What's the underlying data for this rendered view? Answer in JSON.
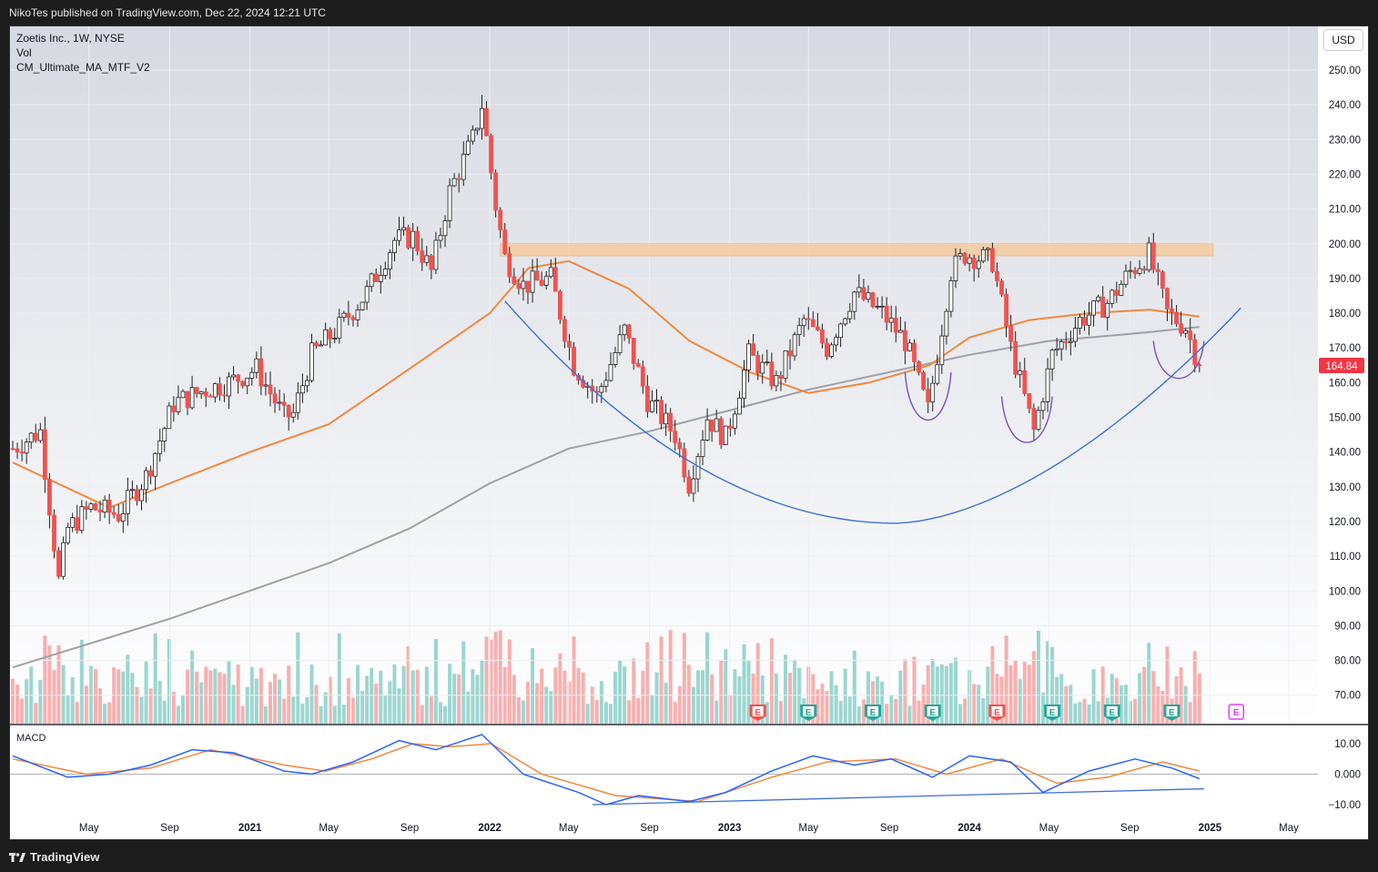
{
  "header": {
    "publish_line": "NikoTes published on TradingView.com, Dec 22, 2024 12:21 UTC"
  },
  "legend": {
    "symbol_line": "Zoetis Inc., 1W, NYSE",
    "volume_label": "Vol",
    "indicator_label": "CM_Ultimate_MA_MTF_V2"
  },
  "currency_button": "USD",
  "last_price_label": "164.84",
  "macd_label": "MACD",
  "footer": {
    "brand": "TradingView"
  },
  "colors": {
    "up": "#26a69a",
    "down": "#ef5350",
    "ma_short": "#f0883e",
    "ma_long": "#a0a0a8",
    "trendline": "#3d6fd8",
    "cup_handle": "#7b4fbf",
    "resistance_zone": "#f6c89a",
    "earnings_future": "#e040fb"
  },
  "chart_data": {
    "type": "candlestick",
    "price_axis": {
      "ticks": [
        250,
        240,
        230,
        220,
        210,
        200,
        190,
        180,
        170,
        160,
        150,
        140,
        130,
        120,
        110,
        100,
        90,
        80,
        70
      ],
      "tick_labels": [
        "250.00",
        "240.00",
        "230.00",
        "220.00",
        "210.00",
        "200.00",
        "190.00",
        "180.00",
        "170.00",
        "160.00",
        "150.00",
        "140.00",
        "130.00",
        "120.00",
        "110.00",
        "100.00",
        "90.00",
        "80.00",
        "70.00"
      ]
    },
    "macd_axis": {
      "ticks": [
        10,
        0,
        -10
      ],
      "tick_labels": [
        "10.00",
        "0.000",
        "−10.00"
      ]
    },
    "time_axis": [
      {
        "label": "May",
        "date": "2020-05-01"
      },
      {
        "label": "Sep",
        "date": "2020-09-01"
      },
      {
        "label": "2021",
        "date": "2021-01-01"
      },
      {
        "label": "May",
        "date": "2021-05-01"
      },
      {
        "label": "Sep",
        "date": "2021-09-01"
      },
      {
        "label": "2022",
        "date": "2022-01-01"
      },
      {
        "label": "May",
        "date": "2022-05-01"
      },
      {
        "label": "Sep",
        "date": "2022-09-01"
      },
      {
        "label": "2023",
        "date": "2023-01-01"
      },
      {
        "label": "May",
        "date": "2023-05-01"
      },
      {
        "label": "Sep",
        "date": "2023-09-01"
      },
      {
        "label": "2024",
        "date": "2024-01-01"
      },
      {
        "label": "May",
        "date": "2024-05-01"
      },
      {
        "label": "Sep",
        "date": "2024-09-01"
      },
      {
        "label": "2025",
        "date": "2025-01-01"
      },
      {
        "label": "May",
        "date": "2025-05-01"
      }
    ],
    "price_path": [
      {
        "date": "2020-01-06",
        "close": 141
      },
      {
        "date": "2020-02-17",
        "close": 146
      },
      {
        "date": "2020-03-16",
        "close": 103
      },
      {
        "date": "2020-03-30",
        "close": 118
      },
      {
        "date": "2020-05-04",
        "close": 124
      },
      {
        "date": "2020-06-15",
        "close": 122
      },
      {
        "date": "2020-07-27",
        "close": 133
      },
      {
        "date": "2020-09-07",
        "close": 154
      },
      {
        "date": "2020-10-26",
        "close": 158
      },
      {
        "date": "2020-11-30",
        "close": 160
      },
      {
        "date": "2021-01-11",
        "close": 164
      },
      {
        "date": "2021-02-22",
        "close": 150
      },
      {
        "date": "2021-03-08",
        "close": 151
      },
      {
        "date": "2021-04-05",
        "close": 168
      },
      {
        "date": "2021-05-17",
        "close": 176
      },
      {
        "date": "2021-06-28",
        "close": 186
      },
      {
        "date": "2021-08-09",
        "close": 201
      },
      {
        "date": "2021-09-06",
        "close": 202
      },
      {
        "date": "2021-10-04",
        "close": 192
      },
      {
        "date": "2021-11-01",
        "close": 215
      },
      {
        "date": "2021-12-06",
        "close": 230
      },
      {
        "date": "2021-12-20",
        "close": 240
      },
      {
        "date": "2022-01-10",
        "close": 211
      },
      {
        "date": "2022-01-24",
        "close": 196
      },
      {
        "date": "2022-02-21",
        "close": 188
      },
      {
        "date": "2022-04-04",
        "close": 190
      },
      {
        "date": "2022-05-09",
        "close": 165
      },
      {
        "date": "2022-06-13",
        "close": 156
      },
      {
        "date": "2022-07-25",
        "close": 175
      },
      {
        "date": "2022-08-29",
        "close": 155
      },
      {
        "date": "2022-10-10",
        "close": 145
      },
      {
        "date": "2022-10-31",
        "close": 131
      },
      {
        "date": "2022-11-28",
        "close": 150
      },
      {
        "date": "2022-12-26",
        "close": 144
      },
      {
        "date": "2023-01-30",
        "close": 168
      },
      {
        "date": "2023-03-13",
        "close": 160
      },
      {
        "date": "2023-04-24",
        "close": 178
      },
      {
        "date": "2023-05-29",
        "close": 170
      },
      {
        "date": "2023-07-10",
        "close": 186
      },
      {
        "date": "2023-08-21",
        "close": 180
      },
      {
        "date": "2023-09-25",
        "close": 172
      },
      {
        "date": "2023-10-30",
        "close": 152
      },
      {
        "date": "2023-12-04",
        "close": 192
      },
      {
        "date": "2023-12-25",
        "close": 197
      },
      {
        "date": "2024-02-05",
        "close": 195
      },
      {
        "date": "2024-03-04",
        "close": 170
      },
      {
        "date": "2024-04-08",
        "close": 146
      },
      {
        "date": "2024-05-06",
        "close": 168
      },
      {
        "date": "2024-06-17",
        "close": 178
      },
      {
        "date": "2024-07-29",
        "close": 183
      },
      {
        "date": "2024-09-02",
        "close": 192
      },
      {
        "date": "2024-09-30",
        "close": 197
      },
      {
        "date": "2024-10-28",
        "close": 180
      },
      {
        "date": "2024-11-25",
        "close": 176
      },
      {
        "date": "2024-12-16",
        "close": 164.84
      }
    ],
    "moving_average_short": [
      {
        "date": "2020-01-06",
        "value": 137
      },
      {
        "date": "2020-06-01",
        "value": 124
      },
      {
        "date": "2020-09-01",
        "value": 131
      },
      {
        "date": "2021-01-01",
        "value": 140
      },
      {
        "date": "2021-05-01",
        "value": 148
      },
      {
        "date": "2021-09-01",
        "value": 164
      },
      {
        "date": "2022-01-01",
        "value": 180
      },
      {
        "date": "2022-03-01",
        "value": 193
      },
      {
        "date": "2022-05-01",
        "value": 195
      },
      {
        "date": "2022-08-01",
        "value": 187
      },
      {
        "date": "2022-11-01",
        "value": 172
      },
      {
        "date": "2023-02-01",
        "value": 163
      },
      {
        "date": "2023-05-01",
        "value": 157
      },
      {
        "date": "2023-08-01",
        "value": 160
      },
      {
        "date": "2023-11-01",
        "value": 165
      },
      {
        "date": "2024-01-01",
        "value": 173
      },
      {
        "date": "2024-04-01",
        "value": 178
      },
      {
        "date": "2024-07-01",
        "value": 180
      },
      {
        "date": "2024-10-01",
        "value": 181
      },
      {
        "date": "2024-12-16",
        "value": 179
      }
    ],
    "moving_average_long": [
      {
        "date": "2020-01-06",
        "value": 78
      },
      {
        "date": "2020-09-01",
        "value": 92
      },
      {
        "date": "2021-05-01",
        "value": 108
      },
      {
        "date": "2021-09-01",
        "value": 118
      },
      {
        "date": "2022-01-01",
        "value": 131
      },
      {
        "date": "2022-05-01",
        "value": 141
      },
      {
        "date": "2022-09-01",
        "value": 146
      },
      {
        "date": "2023-01-01",
        "value": 152
      },
      {
        "date": "2023-05-01",
        "value": 158
      },
      {
        "date": "2023-09-01",
        "value": 163
      },
      {
        "date": "2024-01-01",
        "value": 168
      },
      {
        "date": "2024-05-01",
        "value": 172
      },
      {
        "date": "2024-09-01",
        "value": 174
      },
      {
        "date": "2024-12-16",
        "value": 176
      }
    ],
    "resistance_zone": {
      "low": 196.5,
      "high": 200,
      "from": "2022-01-17",
      "to": "2025-01-06"
    },
    "cup_curve": {
      "start": {
        "date": "2022-01-24",
        "value": 183.5
      },
      "bottom": {
        "date": "2023-09-11",
        "value": 119.5
      },
      "end": {
        "date": "2025-02-17",
        "value": 181.5
      }
    },
    "handles": [
      {
        "from": "2023-09-25",
        "to": "2023-12-04",
        "low": 147.8,
        "top": 163
      },
      {
        "from": "2024-02-19",
        "to": "2024-05-06",
        "low": 141.5,
        "top": 156
      },
      {
        "from": "2024-10-07",
        "to": "2024-12-23",
        "low": 160.8,
        "top": 172
      }
    ],
    "earnings": [
      {
        "date": "2023-02-13",
        "label": "E",
        "kind": "down"
      },
      {
        "date": "2023-05-01",
        "label": "E",
        "kind": "up"
      },
      {
        "date": "2023-08-07",
        "label": "E",
        "kind": "up"
      },
      {
        "date": "2023-11-06",
        "label": "E",
        "kind": "up"
      },
      {
        "date": "2024-02-12",
        "label": "E",
        "kind": "down"
      },
      {
        "date": "2024-05-06",
        "label": "E",
        "kind": "up"
      },
      {
        "date": "2024-08-05",
        "label": "E",
        "kind": "up"
      },
      {
        "date": "2024-11-04",
        "label": "E",
        "kind": "up"
      },
      {
        "date": "2025-02-10",
        "label": "E",
        "kind": "future"
      }
    ],
    "macd": {
      "macd_line": [
        {
          "date": "2020-01-06",
          "value": 6
        },
        {
          "date": "2020-03-30",
          "value": -1
        },
        {
          "date": "2020-06-01",
          "value": 0
        },
        {
          "date": "2020-08-03",
          "value": 3
        },
        {
          "date": "2020-10-05",
          "value": 8
        },
        {
          "date": "2020-12-07",
          "value": 7
        },
        {
          "date": "2021-02-22",
          "value": 1
        },
        {
          "date": "2021-04-05",
          "value": 0
        },
        {
          "date": "2021-06-07",
          "value": 4
        },
        {
          "date": "2021-08-16",
          "value": 11
        },
        {
          "date": "2021-10-11",
          "value": 8
        },
        {
          "date": "2021-12-20",
          "value": 13
        },
        {
          "date": "2022-02-21",
          "value": 0
        },
        {
          "date": "2022-05-16",
          "value": -6
        },
        {
          "date": "2022-06-27",
          "value": -10
        },
        {
          "date": "2022-08-15",
          "value": -7
        },
        {
          "date": "2022-10-31",
          "value": -9
        },
        {
          "date": "2022-12-26",
          "value": -6
        },
        {
          "date": "2023-03-06",
          "value": 1
        },
        {
          "date": "2023-05-08",
          "value": 6
        },
        {
          "date": "2023-07-10",
          "value": 3
        },
        {
          "date": "2023-09-04",
          "value": 5
        },
        {
          "date": "2023-11-06",
          "value": -1
        },
        {
          "date": "2024-01-01",
          "value": 6
        },
        {
          "date": "2024-03-04",
          "value": 4
        },
        {
          "date": "2024-04-22",
          "value": -6
        },
        {
          "date": "2024-07-01",
          "value": 1
        },
        {
          "date": "2024-09-09",
          "value": 5
        },
        {
          "date": "2024-11-04",
          "value": 2
        },
        {
          "date": "2024-12-16",
          "value": -1.5
        }
      ],
      "signal_line": [
        {
          "date": "2020-01-06",
          "value": 5
        },
        {
          "date": "2020-04-27",
          "value": 0
        },
        {
          "date": "2020-08-03",
          "value": 2
        },
        {
          "date": "2020-11-02",
          "value": 8
        },
        {
          "date": "2021-02-22",
          "value": 3
        },
        {
          "date": "2021-04-26",
          "value": 1
        },
        {
          "date": "2021-07-05",
          "value": 5
        },
        {
          "date": "2021-09-06",
          "value": 10
        },
        {
          "date": "2021-11-01",
          "value": 9
        },
        {
          "date": "2022-01-03",
          "value": 10
        },
        {
          "date": "2022-03-21",
          "value": 0
        },
        {
          "date": "2022-07-11",
          "value": -7
        },
        {
          "date": "2022-11-14",
          "value": -9
        },
        {
          "date": "2023-03-06",
          "value": -1
        },
        {
          "date": "2023-05-29",
          "value": 4
        },
        {
          "date": "2023-09-11",
          "value": 5
        },
        {
          "date": "2023-11-27",
          "value": 0
        },
        {
          "date": "2024-02-19",
          "value": 5
        },
        {
          "date": "2024-05-13",
          "value": -3
        },
        {
          "date": "2024-07-29",
          "value": -1
        },
        {
          "date": "2024-10-21",
          "value": 4
        },
        {
          "date": "2024-12-16",
          "value": 1
        }
      ],
      "trendline": {
        "from": {
          "date": "2022-06-06",
          "value": -10
        },
        "to": {
          "date": "2024-12-23",
          "value": -4.8
        }
      }
    },
    "volume": {
      "shown": true,
      "max_bar_fraction_of_panel": 0.5
    }
  }
}
